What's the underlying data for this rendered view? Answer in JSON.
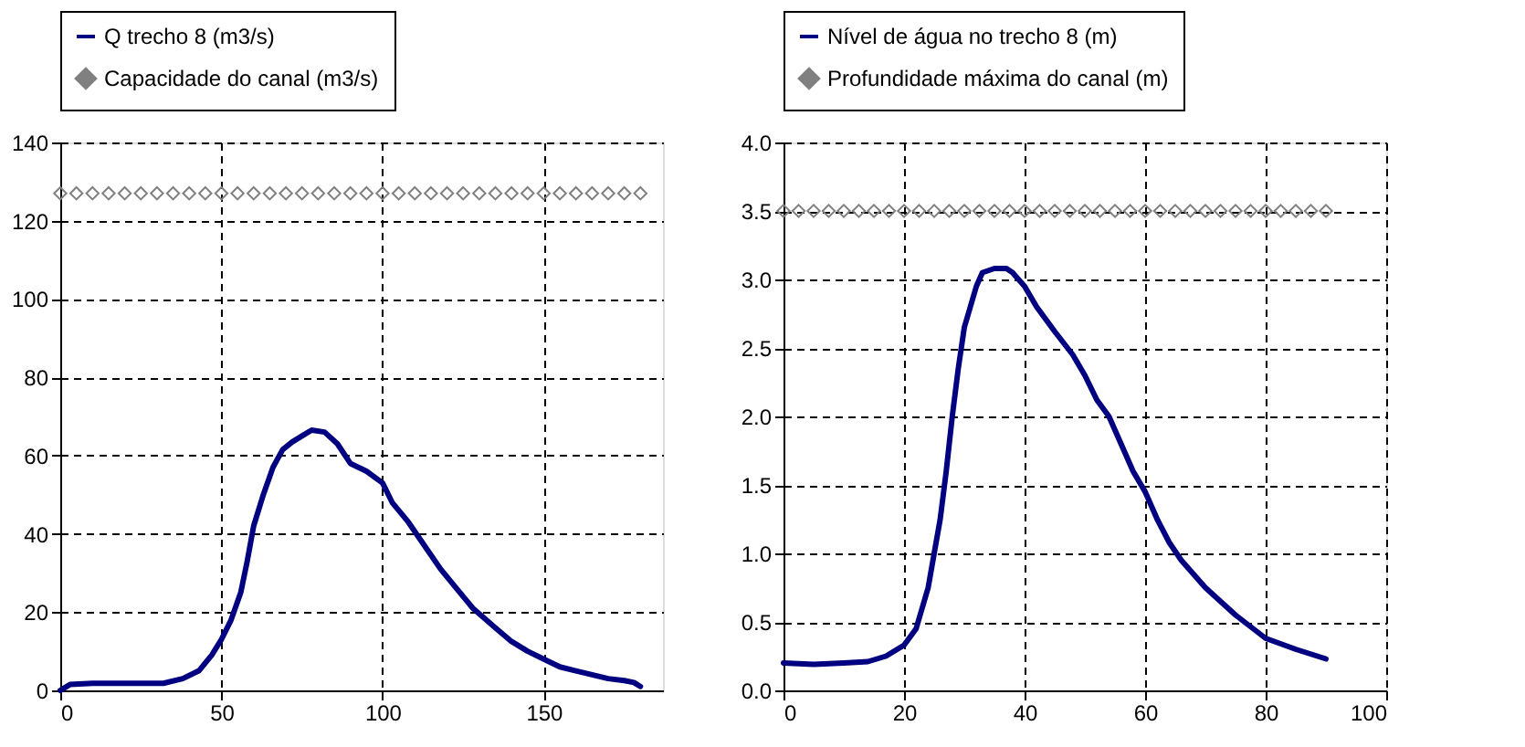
{
  "chart_data": [
    {
      "type": "line",
      "legend": "top",
      "grid": true,
      "xlim": [
        0,
        187
      ],
      "xticks": [
        0,
        50,
        100,
        150
      ],
      "ylim": [
        0,
        140
      ],
      "yticks": [
        0,
        20,
        40,
        60,
        80,
        100,
        120,
        140
      ],
      "series": [
        {
          "name": "Q  trecho 8 (m3/s)",
          "type": "line",
          "color": "#000080",
          "marker": "none",
          "line_style": "solid",
          "x": [
            0,
            3,
            10,
            32,
            38,
            43,
            47,
            50,
            53,
            56,
            58,
            60,
            63,
            66,
            69,
            72,
            75,
            78,
            82,
            86,
            90,
            95,
            100,
            103,
            108,
            113,
            118,
            123,
            128,
            135,
            140,
            145,
            150,
            155,
            160,
            165,
            170,
            175,
            178,
            180
          ],
          "values": [
            0,
            1.5,
            1.8,
            1.8,
            3,
            5,
            9,
            13,
            18,
            25,
            33,
            42,
            50,
            57,
            61.5,
            63.5,
            65,
            66.5,
            66,
            63,
            58,
            56,
            53,
            48,
            43,
            37,
            31,
            26,
            21,
            16,
            12.5,
            10,
            8,
            6,
            5,
            4,
            3,
            2.5,
            2,
            1
          ]
        },
        {
          "name": "Capacidade do canal (m3/s)",
          "type": "scatter",
          "color": "#808080",
          "marker": "diamond",
          "x": [
            0,
            5,
            10,
            15,
            20,
            25,
            30,
            35,
            40,
            45,
            50,
            55,
            60,
            65,
            70,
            75,
            80,
            85,
            90,
            95,
            100,
            105,
            110,
            115,
            120,
            125,
            130,
            135,
            140,
            145,
            150,
            155,
            160,
            165,
            170,
            175,
            180
          ],
          "values": [
            127,
            127,
            127,
            127,
            127,
            127,
            127,
            127,
            127,
            127,
            127,
            127,
            127,
            127,
            127,
            127,
            127,
            127,
            127,
            127,
            127,
            127,
            127,
            127,
            127,
            127,
            127,
            127,
            127,
            127,
            127,
            127,
            127,
            127,
            127,
            127,
            127
          ]
        }
      ]
    },
    {
      "type": "line",
      "legend": "top",
      "grid": true,
      "xlim": [
        0,
        100
      ],
      "xticks": [
        0,
        20,
        40,
        60,
        80,
        100
      ],
      "ylim": [
        0,
        4
      ],
      "yticks": [
        {
          "value": 0,
          "label": "0.0"
        },
        0.5,
        {
          "value": 1,
          "label": "1.0"
        },
        1.5,
        {
          "value": 2,
          "label": "2.0"
        },
        2.5,
        {
          "value": 3,
          "label": "3.0"
        },
        3.5,
        {
          "value": 4,
          "label": "4.0"
        }
      ],
      "series": [
        {
          "name": "Nível de água no trecho 8 (m)",
          "type": "line",
          "color": "#000080",
          "marker": "none",
          "line_style": "solid",
          "x": [
            0,
            5,
            10,
            14,
            17,
            20,
            22,
            24,
            25,
            26,
            27,
            28,
            29,
            30,
            31,
            32,
            33,
            35,
            37,
            38,
            40,
            42,
            45,
            48,
            50,
            52,
            54,
            56,
            58,
            60,
            62,
            64,
            66,
            70,
            75,
            80,
            85,
            90
          ],
          "values": [
            0.2,
            0.19,
            0.2,
            0.21,
            0.25,
            0.33,
            0.45,
            0.75,
            1.0,
            1.25,
            1.6,
            2.0,
            2.35,
            2.65,
            2.8,
            2.95,
            3.05,
            3.08,
            3.08,
            3.05,
            2.95,
            2.8,
            2.62,
            2.45,
            2.3,
            2.12,
            2.0,
            1.8,
            1.6,
            1.45,
            1.25,
            1.08,
            0.95,
            0.75,
            0.55,
            0.38,
            0.3,
            0.23
          ]
        },
        {
          "name": "Profundidade máxima do canal (m)",
          "type": "scatter",
          "color": "#808080",
          "marker": "diamond",
          "x": [
            0,
            2.5,
            5,
            7.5,
            10,
            12.5,
            15,
            17.5,
            20,
            22.5,
            25,
            27.5,
            30,
            32.5,
            35,
            37.5,
            40,
            42.5,
            45,
            47.5,
            50,
            52.5,
            55,
            57.5,
            60,
            62.5,
            65,
            67.5,
            70,
            72.5,
            75,
            77.5,
            80,
            82.5,
            85,
            87.5,
            90
          ],
          "values": [
            3.5,
            3.5,
            3.5,
            3.5,
            3.5,
            3.5,
            3.5,
            3.5,
            3.5,
            3.5,
            3.5,
            3.5,
            3.5,
            3.5,
            3.5,
            3.5,
            3.5,
            3.5,
            3.5,
            3.5,
            3.5,
            3.5,
            3.5,
            3.5,
            3.5,
            3.5,
            3.5,
            3.5,
            3.5,
            3.5,
            3.5,
            3.5,
            3.5,
            3.5,
            3.5,
            3.5,
            3.5
          ]
        }
      ]
    }
  ]
}
